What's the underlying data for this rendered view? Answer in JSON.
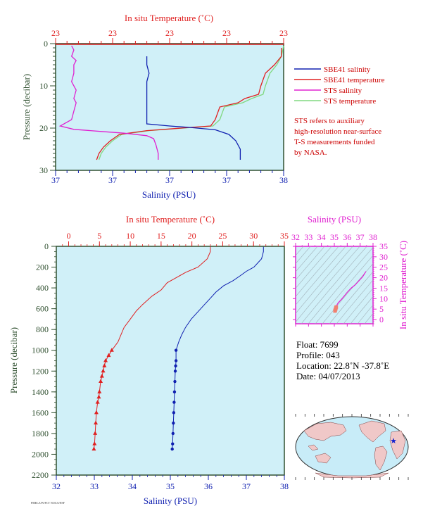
{
  "colors": {
    "salinity_blue": "#1020b0",
    "temp_red": "#e02020",
    "sts_magenta": "#e020d0",
    "sts_green": "#80d880",
    "plot_bg": "#d0f0f8",
    "axis_green": "#305030",
    "note_red": "#cc0000",
    "map_land": "#f0c8c8",
    "map_sea": "#c8ecf8"
  },
  "chart_data": [
    {
      "id": "top-near-surface",
      "type": "line",
      "top_xlabel": "In situ Temperature (˚C)",
      "bottom_xlabel": "Salinity (PSU)",
      "ylabel": "Pressure (decibar)",
      "top_tick_labels": [
        "23",
        "23",
        "23",
        "23",
        "23"
      ],
      "bottom_tick_labels": [
        "37",
        "37",
        "37",
        "37",
        "38"
      ],
      "y_tick_labels": [
        "0",
        "10",
        "20",
        "30"
      ],
      "ylim": [
        30,
        0
      ],
      "legend_position": "right",
      "legend": [
        {
          "name": "SBE41 salinity",
          "color": "#1020b0"
        },
        {
          "name": "SBE41 temperature",
          "color": "#e02020"
        },
        {
          "name": "STS salinity",
          "color": "#e020d0"
        },
        {
          "name": "STS temperature",
          "color": "#80d880"
        }
      ],
      "note_lines": [
        "STS refers to auxiliary",
        "high-resolution near-surface",
        "T-S measurements funded",
        "by NASA."
      ],
      "series": [
        {
          "name": "SBE41 salinity",
          "axis": "bottom",
          "x": [
            0.4,
            0.4,
            0.41,
            0.4,
            0.4,
            0.4,
            0.4,
            0.4,
            0.4,
            0.5,
            0.6,
            0.7,
            0.76,
            0.79,
            0.8,
            0.81,
            0.81,
            0.81
          ],
          "y": [
            3,
            5,
            7,
            9,
            11,
            13,
            15,
            17,
            19,
            19.5,
            19.9,
            20.4,
            21.5,
            23,
            24,
            25,
            26.5,
            27.5
          ]
        },
        {
          "name": "SBE41 temperature",
          "axis": "top",
          "x": [
            0.99,
            0.99,
            0.96,
            0.92,
            0.9,
            0.89,
            0.83,
            0.8,
            0.72,
            0.7,
            0.68,
            0.55,
            0.4,
            0.28,
            0.24,
            0.21,
            0.19,
            0.18
          ],
          "y": [
            1,
            3,
            5,
            7,
            10,
            12,
            13,
            14,
            15,
            18,
            19.5,
            20,
            20.6,
            21.5,
            23,
            24.5,
            26,
            27.5
          ]
        },
        {
          "name": "STS salinity",
          "axis": "bottom",
          "x": [
            0.07,
            0.08,
            0.07,
            0.09,
            0.08,
            0.08,
            0.07,
            0.09,
            0.08,
            0.09,
            0.08,
            0.07,
            0.02,
            0.08,
            0.2,
            0.3,
            0.4,
            0.43,
            0.44,
            0.45,
            0.45
          ],
          "y": [
            0.5,
            1.5,
            3,
            4,
            5,
            7,
            9,
            11,
            13,
            14,
            16,
            18,
            19.5,
            20.3,
            20.8,
            21.2,
            21.8,
            22.5,
            24,
            26,
            27.5
          ]
        },
        {
          "name": "STS temperature",
          "axis": "top",
          "x": [
            1.0,
            0.99,
            0.97,
            0.94,
            0.92,
            0.91,
            0.86,
            0.82,
            0.74,
            0.72,
            0.69,
            0.56,
            0.41,
            0.29,
            0.25,
            0.22,
            0.2,
            0.19
          ],
          "y": [
            0.5,
            3,
            5,
            7,
            10,
            12,
            13,
            14,
            15,
            18,
            19.5,
            20,
            20.6,
            21.5,
            23,
            24.5,
            26,
            27.5
          ]
        }
      ]
    },
    {
      "id": "main-profile",
      "type": "line",
      "top_xlabel": "In situ Temperature (˚C)",
      "bottom_xlabel": "Salinity (PSU)",
      "ylabel": "Pressure (decibar)",
      "temperature_xlim": [
        -2,
        35
      ],
      "salinity_xlim": [
        32,
        38
      ],
      "ylim": [
        2200,
        0
      ],
      "temperature_ticks": [
        0,
        5,
        10,
        15,
        20,
        25,
        30,
        35
      ],
      "salinity_ticks": [
        32,
        33,
        34,
        35,
        36,
        37,
        38
      ],
      "pressure_ticks": [
        0,
        200,
        400,
        600,
        800,
        1000,
        1200,
        1400,
        1600,
        1800,
        2000,
        2200
      ],
      "series": [
        {
          "name": "Temperature",
          "axis": "top",
          "marker": "triangle",
          "x": [
            23.0,
            23.0,
            22.5,
            21.0,
            19.0,
            17.5,
            16.0,
            15.0,
            13.5,
            12.0,
            11.0,
            10.0,
            9.0,
            8.5,
            8.0,
            7.0,
            6.5,
            6.0,
            5.8,
            5.6,
            5.4,
            5.2,
            5.0,
            4.9,
            4.7,
            4.5,
            4.4,
            4.3,
            4.2,
            4.1
          ],
          "y": [
            5,
            50,
            120,
            200,
            250,
            300,
            350,
            420,
            480,
            560,
            620,
            700,
            780,
            850,
            920,
            1000,
            1050,
            1100,
            1150,
            1200,
            1250,
            1300,
            1400,
            1450,
            1500,
            1600,
            1700,
            1800,
            1900,
            1950
          ]
        },
        {
          "name": "Salinity",
          "axis": "bottom",
          "marker": "circle",
          "x": [
            37.45,
            37.45,
            37.4,
            37.2,
            37.0,
            36.85,
            36.65,
            36.4,
            36.2,
            36.05,
            35.9,
            35.75,
            35.55,
            35.4,
            35.3,
            35.22,
            35.15,
            35.15,
            35.14,
            35.13,
            35.12,
            35.11,
            35.1,
            35.09,
            35.08,
            35.07,
            35.06,
            35.05
          ],
          "y": [
            5,
            50,
            120,
            200,
            240,
            280,
            330,
            380,
            440,
            500,
            560,
            620,
            700,
            780,
            850,
            920,
            1000,
            1100,
            1150,
            1200,
            1300,
            1400,
            1500,
            1600,
            1700,
            1800,
            1900,
            1950
          ]
        }
      ]
    },
    {
      "id": "ts-diagram",
      "type": "scatter",
      "top_xlabel": "Salinity (PSU)",
      "ylabel_right": "In situ Temperature (˚C)",
      "salinity_ticks": [
        32,
        33,
        34,
        35,
        36,
        37,
        38
      ],
      "temperature_ticks": [
        0,
        5,
        10,
        15,
        20,
        25,
        30,
        35
      ],
      "xlim": [
        32,
        38
      ],
      "ylim": [
        -2,
        35
      ],
      "series": [
        {
          "name": "T-S curve",
          "x": [
            37.45,
            37.2,
            36.9,
            36.6,
            36.3,
            36.0,
            35.8,
            35.6,
            35.45,
            35.3,
            35.2,
            35.15,
            35.12,
            35.1,
            35.07,
            35.05
          ],
          "y": [
            23,
            20.5,
            18.5,
            16.5,
            15,
            13,
            11.5,
            10,
            9,
            8,
            7,
            6,
            5.5,
            5,
            4.5,
            4.1
          ]
        }
      ]
    }
  ],
  "float_info": {
    "float_line": "Float:  7699",
    "profile_line": "Profile:  043",
    "location_line": "Location:  22.8˚N  -37.8˚E",
    "date_line": "Date:  04/07/2013"
  },
  "footer": {
    "tiny_label": "PMEL/UW/FCT  NOAA/NSF"
  }
}
